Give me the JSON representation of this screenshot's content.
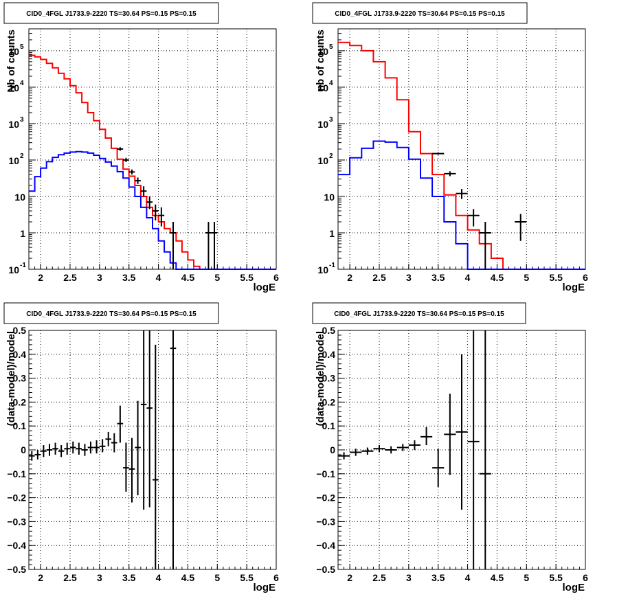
{
  "colors": {
    "model_total": "#ff0000",
    "model_source": "#0000ff",
    "data": "#000000"
  },
  "chart_data": [
    {
      "type": "line",
      "title": "CID0_4FGL J1733.9-2220 TS=30.64 PS=0.15 PS=0.15",
      "xlabel": "logE",
      "ylabel": "Nb of counts",
      "xlim": [
        1.8,
        6.0
      ],
      "ylim": [
        0.1,
        400000
      ],
      "log_y": true,
      "grid": true,
      "x_ticks": [
        "2",
        "2.5",
        "3",
        "3.5",
        "4",
        "4.5",
        "5",
        "5.5",
        "6"
      ],
      "y_ticks": [
        {
          "base": "10",
          "exp": "-1",
          "value": 0.1
        },
        {
          "base": "1",
          "exp": "",
          "value": 1
        },
        {
          "base": "10",
          "exp": "",
          "value": 10
        },
        {
          "base": "10",
          "exp": "2",
          "value": 100
        },
        {
          "base": "10",
          "exp": "3",
          "value": 1000
        },
        {
          "base": "10",
          "exp": "4",
          "value": 10000
        },
        {
          "base": "10",
          "exp": "5",
          "value": 100000
        }
      ],
      "bin_edges": [
        1.8,
        1.9,
        2.0,
        2.1,
        2.2,
        2.3,
        2.4,
        2.5,
        2.6,
        2.7,
        2.8,
        2.9,
        3.0,
        3.1,
        3.2,
        3.3,
        3.4,
        3.5,
        3.6,
        3.7,
        3.8,
        3.9,
        4.0,
        4.1,
        4.2,
        4.3,
        4.4,
        4.5,
        4.6,
        4.7,
        4.8,
        4.9,
        5.0,
        5.1,
        5.2,
        5.3,
        5.4,
        5.5,
        5.6,
        5.7,
        5.8,
        5.9,
        6.0
      ],
      "series": [
        {
          "role": "model_total",
          "values": [
            75000,
            68000,
            58000,
            45000,
            34000,
            24000,
            17000,
            11000,
            7000,
            3800,
            2000,
            1200,
            700,
            400,
            210,
            105,
            56,
            36,
            20,
            10,
            5,
            3,
            2,
            1.3,
            1.0,
            0.6,
            0.3,
            0.18,
            0.12,
            0.1,
            0.1,
            0.1,
            0.1,
            0.1,
            0.1,
            0.1,
            0.1,
            0.1,
            0.1,
            0.1,
            0.1,
            0.1
          ]
        },
        {
          "role": "model_source",
          "values": [
            14,
            35,
            60,
            90,
            118,
            140,
            155,
            165,
            170,
            165,
            155,
            135,
            110,
            88,
            68,
            48,
            32,
            18,
            10,
            5,
            2.6,
            1.3,
            0.6,
            0.3,
            0.15,
            0.1,
            0.1,
            0.1,
            0.1,
            0.1,
            0.1,
            0.1,
            0.1,
            0.1,
            0.1,
            0.1,
            0.1,
            0.1,
            0.1,
            0.1,
            0.1,
            0.1
          ]
        },
        {
          "role": "data",
          "points": [
            {
              "x": 3.35,
              "y": 200,
              "lo": 180,
              "hi": 225
            },
            {
              "x": 3.45,
              "y": 100,
              "lo": 88,
              "hi": 115
            },
            {
              "x": 3.55,
              "y": 47,
              "lo": 40,
              "hi": 55
            },
            {
              "x": 3.65,
              "y": 27,
              "lo": 22,
              "hi": 33
            },
            {
              "x": 3.75,
              "y": 14,
              "lo": 10,
              "hi": 19
            },
            {
              "x": 3.85,
              "y": 7,
              "lo": 4.5,
              "hi": 10
            },
            {
              "x": 3.95,
              "y": 4,
              "lo": 2.2,
              "hi": 6
            },
            {
              "x": 4.05,
              "y": 3,
              "lo": 1.5,
              "hi": 5
            },
            {
              "x": 4.25,
              "y": 1,
              "lo": 0.1,
              "hi": 2
            },
            {
              "x": 4.85,
              "y": 1,
              "lo": 0.1,
              "hi": 2
            },
            {
              "x": 4.95,
              "y": 1,
              "lo": 0.1,
              "hi": 2
            }
          ]
        }
      ]
    },
    {
      "type": "line",
      "title": "CID0_4FGL J1733.9-2220 TS=30.64 PS=0.15 PS=0.15",
      "xlabel": "logE",
      "ylabel": "nb of counts",
      "xlim": [
        1.8,
        6.0
      ],
      "ylim": [
        0.1,
        400000
      ],
      "log_y": true,
      "grid": true,
      "x_ticks": [
        "2",
        "2.5",
        "3",
        "3.5",
        "4",
        "4.5",
        "5",
        "5.5",
        "6"
      ],
      "y_ticks": [
        {
          "base": "10",
          "exp": "-1",
          "value": 0.1
        },
        {
          "base": "1",
          "exp": "",
          "value": 1
        },
        {
          "base": "10",
          "exp": "",
          "value": 10
        },
        {
          "base": "10",
          "exp": "2",
          "value": 100
        },
        {
          "base": "10",
          "exp": "3",
          "value": 1000
        },
        {
          "base": "10",
          "exp": "4",
          "value": 10000
        },
        {
          "base": "10",
          "exp": "5",
          "value": 100000
        }
      ],
      "bin_edges": [
        1.8,
        2.0,
        2.2,
        2.4,
        2.6,
        2.8,
        3.0,
        3.2,
        3.4,
        3.6,
        3.8,
        4.0,
        4.2,
        4.4,
        4.6,
        4.8,
        5.0,
        5.2,
        5.4,
        5.6,
        5.8,
        6.0
      ],
      "series": [
        {
          "role": "model_total",
          "values": [
            170000,
            140000,
            100000,
            50000,
            18000,
            4500,
            600,
            150,
            40,
            11,
            3,
            1.2,
            0.5,
            0.2,
            0.1,
            0.1,
            0.1,
            0.1,
            0.1,
            0.1,
            0.1
          ]
        },
        {
          "role": "model_source",
          "values": [
            40,
            115,
            210,
            330,
            310,
            220,
            105,
            32,
            10,
            2,
            0.5,
            0.1,
            0.1,
            0.1,
            0.1,
            0.1,
            0.1,
            0.1,
            0.1,
            0.1,
            0.1
          ]
        },
        {
          "role": "data",
          "points": [
            {
              "x": 3.5,
              "y": 150,
              "lo": 140,
              "hi": 162
            },
            {
              "x": 3.7,
              "y": 42,
              "lo": 36,
              "hi": 49
            },
            {
              "x": 3.9,
              "y": 12,
              "lo": 8.5,
              "hi": 16
            },
            {
              "x": 4.1,
              "y": 3,
              "lo": 1.5,
              "hi": 4.5
            },
            {
              "x": 4.3,
              "y": 1,
              "lo": 0.1,
              "hi": 2
            },
            {
              "x": 4.9,
              "y": 2,
              "lo": 0.6,
              "hi": 3.3
            }
          ]
        }
      ]
    },
    {
      "type": "scatter",
      "title": "CID0_4FGL J1733.9-2220 TS=30.64 PS=0.15 PS=0.15",
      "xlabel": "logE",
      "ylabel": "(data-model)/model",
      "xlim": [
        1.8,
        6.0
      ],
      "ylim": [
        -0.5,
        0.5
      ],
      "grid": true,
      "x_ticks": [
        "2",
        "2.5",
        "3",
        "3.5",
        "4",
        "4.5",
        "5",
        "5.5",
        "6"
      ],
      "y_ticks": [
        "−0.5",
        "−0.4",
        "−0.3",
        "−0.2",
        "−0.1",
        "0",
        "0.1",
        "0.2",
        "0.3",
        "0.4",
        "0.5"
      ],
      "points": [
        {
          "x": 1.85,
          "y": -0.025,
          "lo": -0.045,
          "hi": -0.005
        },
        {
          "x": 1.95,
          "y": -0.02,
          "lo": -0.04,
          "hi": 0.0
        },
        {
          "x": 2.05,
          "y": -0.005,
          "lo": -0.03,
          "hi": 0.02
        },
        {
          "x": 2.15,
          "y": 0.0,
          "lo": -0.025,
          "hi": 0.025
        },
        {
          "x": 2.25,
          "y": 0.005,
          "lo": -0.02,
          "hi": 0.03
        },
        {
          "x": 2.35,
          "y": -0.005,
          "lo": -0.03,
          "hi": 0.02
        },
        {
          "x": 2.45,
          "y": 0.005,
          "lo": -0.02,
          "hi": 0.03
        },
        {
          "x": 2.55,
          "y": 0.01,
          "lo": -0.015,
          "hi": 0.035
        },
        {
          "x": 2.65,
          "y": 0.005,
          "lo": -0.02,
          "hi": 0.03
        },
        {
          "x": 2.75,
          "y": 0.0,
          "lo": -0.025,
          "hi": 0.025
        },
        {
          "x": 2.85,
          "y": 0.01,
          "lo": -0.015,
          "hi": 0.035
        },
        {
          "x": 2.95,
          "y": 0.01,
          "lo": -0.015,
          "hi": 0.04
        },
        {
          "x": 3.05,
          "y": 0.015,
          "lo": -0.01,
          "hi": 0.045
        },
        {
          "x": 3.15,
          "y": 0.045,
          "lo": 0.015,
          "hi": 0.075
        },
        {
          "x": 3.25,
          "y": 0.03,
          "lo": -0.01,
          "hi": 0.07
        },
        {
          "x": 3.35,
          "y": 0.11,
          "lo": 0.03,
          "hi": 0.185
        },
        {
          "x": 3.45,
          "y": -0.075,
          "lo": -0.175,
          "hi": 0.03
        },
        {
          "x": 3.55,
          "y": -0.08,
          "lo": -0.22,
          "hi": 0.05
        },
        {
          "x": 3.65,
          "y": 0.01,
          "lo": -0.19,
          "hi": 0.205
        },
        {
          "x": 3.75,
          "y": 0.19,
          "lo": -0.25,
          "hi": 0.5
        },
        {
          "x": 3.85,
          "y": 0.175,
          "lo": -0.24,
          "hi": 0.5
        },
        {
          "x": 3.95,
          "y": -0.125,
          "lo": -0.5,
          "hi": 0.44
        },
        {
          "x": 4.25,
          "y": 0.425,
          "lo": -0.5,
          "hi": 0.5
        }
      ]
    },
    {
      "type": "scatter",
      "title": "CID0_4FGL J1733.9-2220 TS=30.64 PS=0.15 PS=0.15",
      "xlabel": "logE",
      "ylabel": "(data-model)/model",
      "xlim": [
        1.8,
        6.0
      ],
      "ylim": [
        -0.5,
        0.5
      ],
      "grid": true,
      "x_ticks": [
        "2",
        "2.5",
        "3",
        "3.5",
        "4",
        "4.5",
        "5",
        "5.5",
        "6"
      ],
      "y_ticks": [
        "−0.5",
        "−0.4",
        "−0.3",
        "−0.2",
        "−0.1",
        "0",
        "0.1",
        "0.2",
        "0.3",
        "0.4",
        "0.5"
      ],
      "points": [
        {
          "x": 1.9,
          "y": -0.025,
          "lo": -0.04,
          "hi": -0.01
        },
        {
          "x": 2.1,
          "y": -0.01,
          "lo": -0.025,
          "hi": 0.005
        },
        {
          "x": 2.3,
          "y": -0.005,
          "lo": -0.02,
          "hi": 0.01
        },
        {
          "x": 2.5,
          "y": 0.005,
          "lo": -0.01,
          "hi": 0.02
        },
        {
          "x": 2.7,
          "y": 0.0,
          "lo": -0.015,
          "hi": 0.015
        },
        {
          "x": 2.9,
          "y": 0.01,
          "lo": -0.005,
          "hi": 0.025
        },
        {
          "x": 3.1,
          "y": 0.02,
          "lo": 0.0,
          "hi": 0.04
        },
        {
          "x": 3.3,
          "y": 0.055,
          "lo": 0.02,
          "hi": 0.095
        },
        {
          "x": 3.5,
          "y": -0.075,
          "lo": -0.155,
          "hi": 0.005
        },
        {
          "x": 3.7,
          "y": 0.065,
          "lo": -0.105,
          "hi": 0.235
        },
        {
          "x": 3.9,
          "y": 0.075,
          "lo": -0.25,
          "hi": 0.4
        },
        {
          "x": 4.1,
          "y": 0.035,
          "lo": -0.5,
          "hi": 0.5
        },
        {
          "x": 4.3,
          "y": -0.1,
          "lo": -0.5,
          "hi": 0.5
        }
      ]
    }
  ]
}
